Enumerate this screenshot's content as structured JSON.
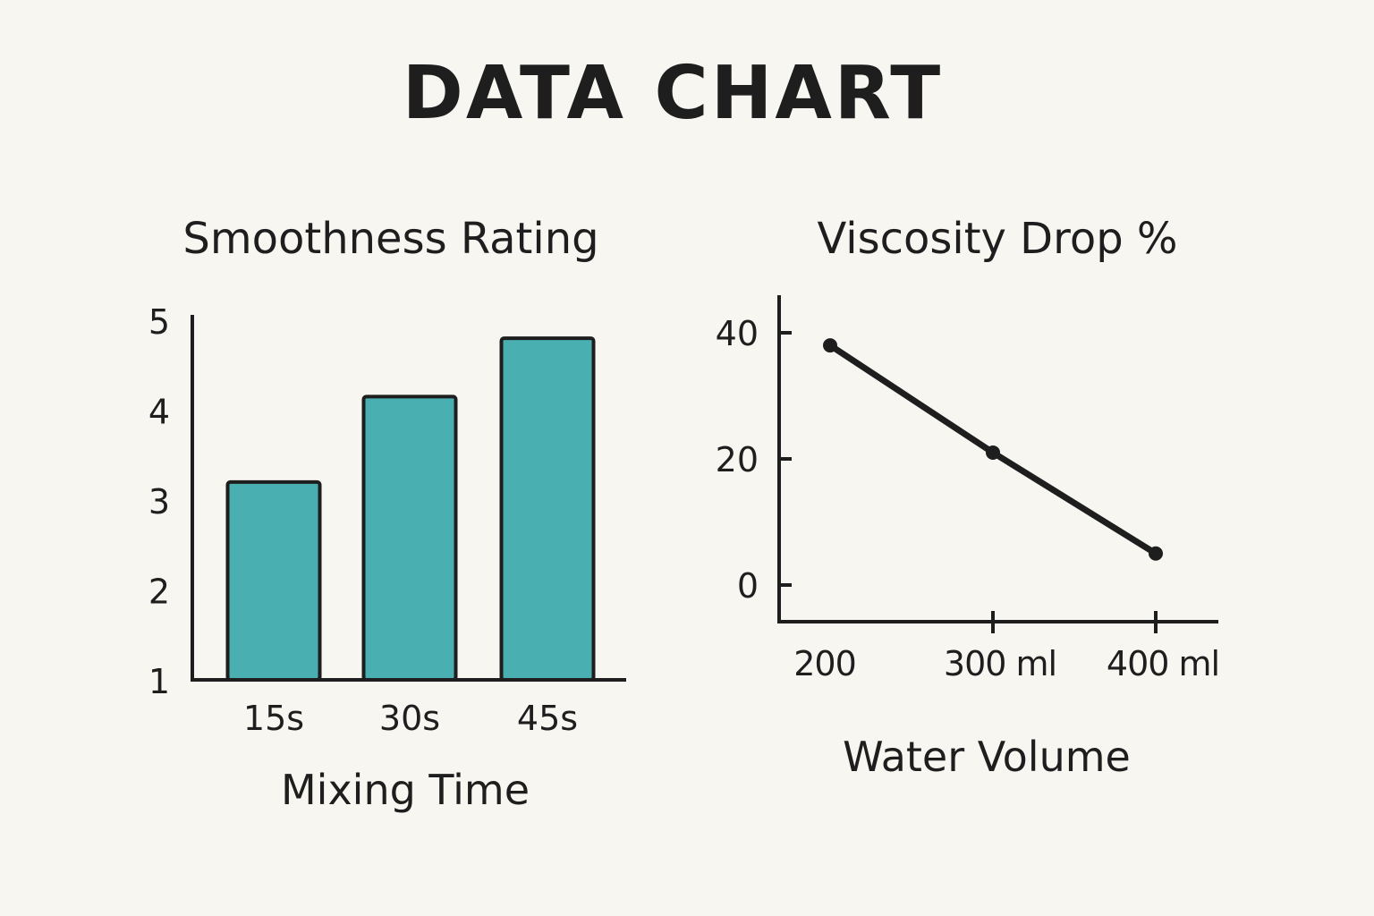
{
  "title": "DATA CHART",
  "colors": {
    "background": "#f8f6f1",
    "bar_fill": "#4aafb0",
    "ink": "#1e1e1e"
  },
  "chart_data": [
    {
      "type": "bar",
      "title": "Smoothness Rating",
      "xlabel": "Mixing Time",
      "ylabel": "",
      "categories": [
        "15s",
        "30s",
        "45s"
      ],
      "values": [
        3.2,
        4.15,
        4.8
      ],
      "ylim": [
        1,
        5
      ],
      "yticks": [
        "1",
        "2",
        "3",
        "4",
        "5"
      ],
      "grid": false
    },
    {
      "type": "line",
      "title": "Viscosity Drop %",
      "xlabel": "Water Volume",
      "ylabel": "",
      "x": [
        200,
        300,
        400
      ],
      "xtick_labels": [
        "200",
        "300 ml",
        "400 ml"
      ],
      "values": [
        38,
        21,
        5
      ],
      "ylim": [
        0,
        40
      ],
      "yticks": [
        "0",
        "20",
        "40"
      ],
      "grid": false
    }
  ]
}
